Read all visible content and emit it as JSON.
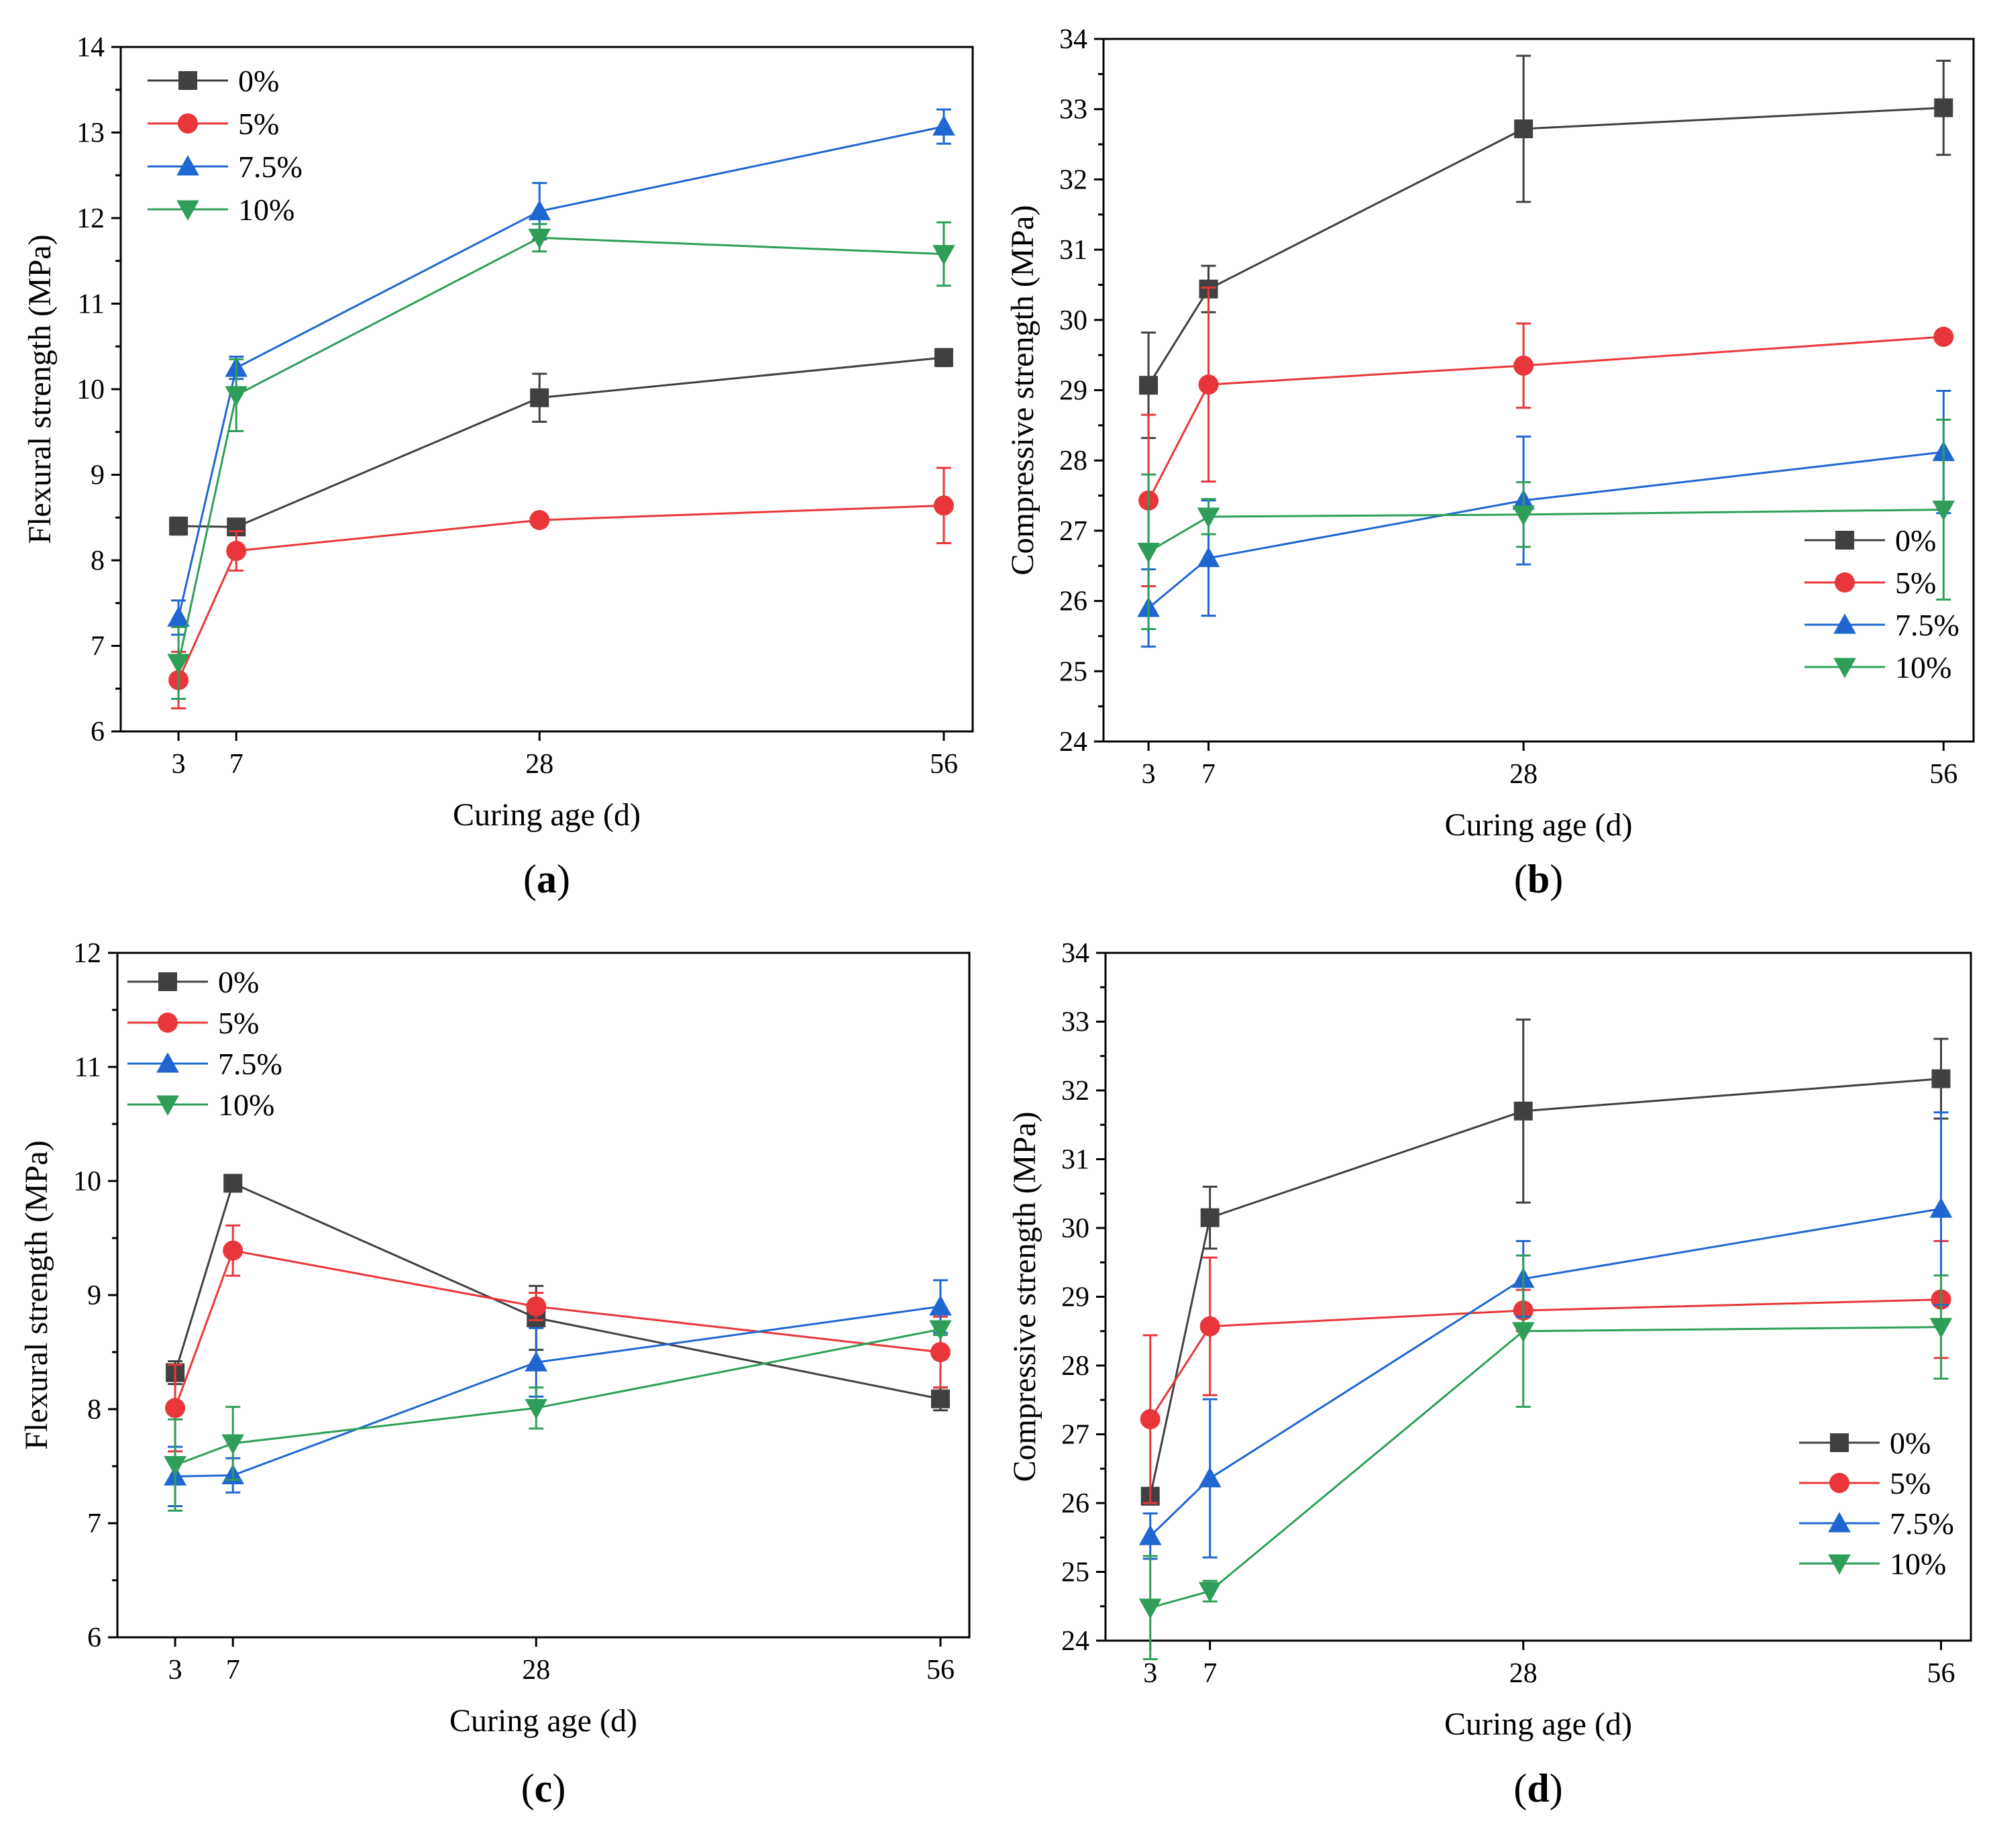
{
  "figure": {
    "captions": [
      "a",
      "b",
      "c",
      "d"
    ]
  },
  "colors": {
    "0%": "#404040",
    "5%": "#e8363a",
    "7.5%": "#1f66d1",
    "10%": "#2e9e58"
  },
  "chart_data": [
    {
      "id": "a",
      "type": "line",
      "title": "",
      "caption": "a",
      "xlabel": "Curing age (d)",
      "ylabel": "Flexural strength (MPa)",
      "x": [
        3,
        7,
        28,
        56
      ],
      "xticks": [
        3,
        7,
        28,
        56
      ],
      "xlim": [
        -1,
        58
      ],
      "ylim": [
        6,
        14
      ],
      "yticks": [
        6,
        7,
        8,
        9,
        10,
        11,
        12,
        13,
        14
      ],
      "legend_position": "top-left",
      "series": [
        {
          "name": "0%",
          "marker": "square",
          "values": [
            8.4,
            8.39,
            9.9,
            10.37
          ],
          "errors": [
            0.1,
            0.05,
            0.28,
            0.1
          ]
        },
        {
          "name": "5%",
          "marker": "circle",
          "values": [
            6.6,
            8.11,
            8.47,
            8.64
          ],
          "errors": [
            0.33,
            0.23,
            0.06,
            0.44
          ]
        },
        {
          "name": "7.5%",
          "marker": "triangle-up",
          "values": [
            7.33,
            10.25,
            12.08,
            13.07
          ],
          "errors": [
            0.2,
            0.13,
            0.33,
            0.2
          ]
        },
        {
          "name": "10%",
          "marker": "triangle-down",
          "values": [
            6.8,
            9.93,
            11.77,
            11.58
          ],
          "errors": [
            0.42,
            0.42,
            0.16,
            0.37
          ]
        }
      ]
    },
    {
      "id": "b",
      "type": "line",
      "title": "",
      "caption": "b",
      "xlabel": "Curing age (d)",
      "ylabel": "Compressive strength (MPa)",
      "x": [
        3,
        7,
        28,
        56
      ],
      "xticks": [
        3,
        7,
        28,
        56
      ],
      "xlim": [
        0,
        58
      ],
      "ylim": [
        24,
        34
      ],
      "yticks": [
        24,
        25,
        26,
        27,
        28,
        29,
        30,
        31,
        32,
        33,
        34
      ],
      "legend_position": "bottom-right",
      "series": [
        {
          "name": "0%",
          "marker": "square",
          "values": [
            29.07,
            30.44,
            32.72,
            33.02
          ],
          "errors": [
            0.75,
            0.33,
            1.04,
            0.67
          ]
        },
        {
          "name": "5%",
          "marker": "circle",
          "values": [
            27.43,
            29.08,
            29.35,
            29.76
          ],
          "errors": [
            1.22,
            1.38,
            0.6,
            0.05
          ]
        },
        {
          "name": "7.5%",
          "marker": "triangle-up",
          "values": [
            25.9,
            26.61,
            27.43,
            28.12
          ],
          "errors": [
            0.55,
            0.82,
            0.91,
            0.87
          ]
        },
        {
          "name": "10%",
          "marker": "triangle-down",
          "values": [
            26.7,
            27.2,
            27.23,
            27.3
          ],
          "errors": [
            1.1,
            0.25,
            0.46,
            1.28
          ]
        }
      ]
    },
    {
      "id": "c",
      "type": "line",
      "title": "",
      "caption": "c",
      "xlabel": "Curing age (d)",
      "ylabel": "Flexural strength (MPa)",
      "x": [
        3,
        7,
        28,
        56
      ],
      "xticks": [
        3,
        7,
        28,
        56
      ],
      "xlim": [
        -1,
        58
      ],
      "ylim": [
        6,
        12
      ],
      "yticks": [
        6,
        7,
        8,
        9,
        10,
        11,
        12
      ],
      "legend_position": "top-left",
      "series": [
        {
          "name": "0%",
          "marker": "square",
          "values": [
            8.32,
            9.98,
            8.8,
            8.09
          ],
          "errors": [
            0.1,
            0.02,
            0.28,
            0.1
          ]
        },
        {
          "name": "5%",
          "marker": "circle",
          "values": [
            8.01,
            9.39,
            8.9,
            8.5
          ],
          "errors": [
            0.38,
            0.22,
            0.12,
            0.31
          ]
        },
        {
          "name": "7.5%",
          "marker": "triangle-up",
          "values": [
            7.41,
            7.42,
            8.41,
            8.9
          ],
          "errors": [
            0.26,
            0.15,
            0.3,
            0.23
          ]
        },
        {
          "name": "10%",
          "marker": "triangle-down",
          "values": [
            7.51,
            7.7,
            8.01,
            8.7
          ],
          "errors": [
            0.4,
            0.32,
            0.18,
            0.05
          ]
        }
      ]
    },
    {
      "id": "d",
      "type": "line",
      "title": "",
      "caption": "d",
      "xlabel": "Curing age (d)",
      "ylabel": "Compressive strength (MPa)",
      "x": [
        3,
        7,
        28,
        56
      ],
      "xticks": [
        3,
        7,
        28,
        56
      ],
      "xlim": [
        0,
        58
      ],
      "ylim": [
        24,
        34
      ],
      "yticks": [
        24,
        25,
        26,
        27,
        28,
        29,
        30,
        31,
        32,
        33,
        34
      ],
      "legend_position": "bottom-right",
      "series": [
        {
          "name": "0%",
          "marker": "square",
          "values": [
            26.1,
            30.15,
            31.7,
            32.17
          ],
          "errors": [
            0.1,
            0.45,
            1.33,
            0.58
          ]
        },
        {
          "name": "5%",
          "marker": "circle",
          "values": [
            27.22,
            28.57,
            28.8,
            28.96
          ],
          "errors": [
            1.22,
            1.0,
            0.3,
            0.85
          ]
        },
        {
          "name": "7.5%",
          "marker": "triangle-up",
          "values": [
            25.52,
            26.36,
            29.26,
            30.28
          ],
          "errors": [
            0.33,
            1.15,
            0.55,
            1.4
          ]
        },
        {
          "name": "10%",
          "marker": "triangle-down",
          "values": [
            24.48,
            24.72,
            28.5,
            28.56
          ],
          "errors": [
            0.75,
            0.15,
            1.1,
            0.75
          ]
        }
      ]
    }
  ]
}
